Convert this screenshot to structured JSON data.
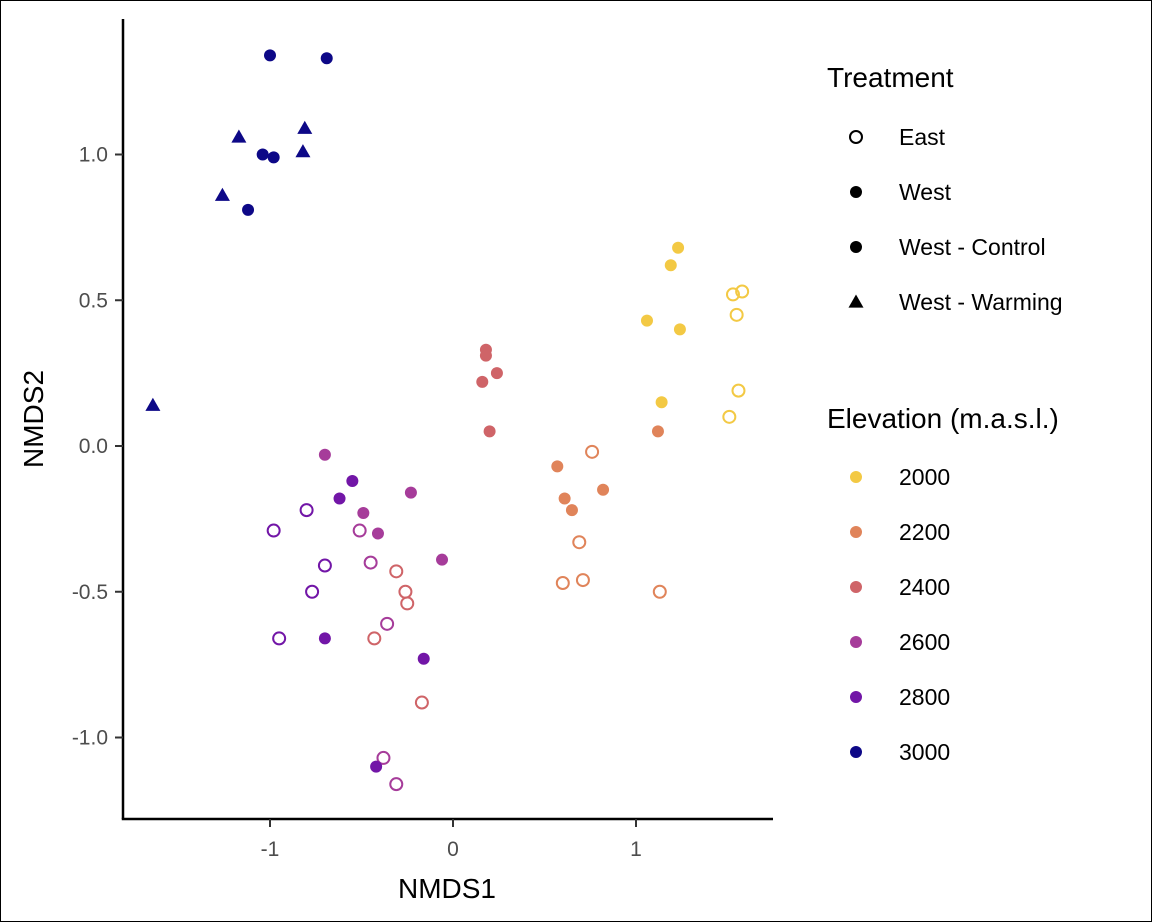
{
  "chart_data": {
    "type": "scatter",
    "xlabel": "NMDS1",
    "ylabel": "NMDS2",
    "xlim": [
      -1.8,
      1.75
    ],
    "ylim": [
      -1.3,
      1.48
    ],
    "x_ticks": [
      -1,
      0,
      1
    ],
    "x_tick_labels": [
      "-1",
      "0",
      "1"
    ],
    "y_ticks": [
      1.0,
      0.5,
      0.0,
      -0.5,
      -1.0
    ],
    "y_tick_labels": [
      "1.0",
      "0.5",
      "0.0",
      "-0.5",
      "-1.0"
    ],
    "grid": false,
    "legend_placement": "right",
    "legends": [
      {
        "title": "Treatment",
        "entries": [
          {
            "label": "East",
            "shape": "open-circle"
          },
          {
            "label": "West",
            "shape": "filled-circle"
          },
          {
            "label": "West - Control",
            "shape": "filled-circle"
          },
          {
            "label": "West - Warming",
            "shape": "triangle"
          }
        ]
      },
      {
        "title": "Elevation (m.a.s.l.)",
        "entries": [
          {
            "label": "2000",
            "color": "#F3C944"
          },
          {
            "label": "2200",
            "color": "#E0845A"
          },
          {
            "label": "2400",
            "color": "#CF6468"
          },
          {
            "label": "2600",
            "color": "#A63C9A"
          },
          {
            "label": "2800",
            "color": "#7216A7"
          },
          {
            "label": "3000",
            "color": "#0D0887"
          }
        ]
      }
    ],
    "points": [
      {
        "x": -1.0,
        "y": 1.34,
        "shape": "filled-circle",
        "elevation": "3000"
      },
      {
        "x": -0.69,
        "y": 1.33,
        "shape": "filled-circle",
        "elevation": "3000"
      },
      {
        "x": -1.17,
        "y": 1.06,
        "shape": "triangle",
        "elevation": "3000"
      },
      {
        "x": -0.81,
        "y": 1.09,
        "shape": "triangle",
        "elevation": "3000"
      },
      {
        "x": -1.04,
        "y": 1.0,
        "shape": "filled-circle",
        "elevation": "3000"
      },
      {
        "x": -0.98,
        "y": 0.99,
        "shape": "filled-circle",
        "elevation": "3000"
      },
      {
        "x": -0.82,
        "y": 1.01,
        "shape": "triangle",
        "elevation": "3000"
      },
      {
        "x": -1.26,
        "y": 0.86,
        "shape": "triangle",
        "elevation": "3000"
      },
      {
        "x": -1.12,
        "y": 0.81,
        "shape": "filled-circle",
        "elevation": "3000"
      },
      {
        "x": -1.64,
        "y": 0.14,
        "shape": "triangle",
        "elevation": "3000"
      },
      {
        "x": 1.23,
        "y": 0.68,
        "shape": "filled-circle",
        "elevation": "2000"
      },
      {
        "x": 1.19,
        "y": 0.62,
        "shape": "filled-circle",
        "elevation": "2000"
      },
      {
        "x": 1.06,
        "y": 0.43,
        "shape": "filled-circle",
        "elevation": "2000"
      },
      {
        "x": 1.24,
        "y": 0.4,
        "shape": "filled-circle",
        "elevation": "2000"
      },
      {
        "x": 1.14,
        "y": 0.15,
        "shape": "filled-circle",
        "elevation": "2000"
      },
      {
        "x": 1.53,
        "y": 0.52,
        "shape": "open-circle",
        "elevation": "2000"
      },
      {
        "x": 1.58,
        "y": 0.53,
        "shape": "open-circle",
        "elevation": "2000"
      },
      {
        "x": 1.55,
        "y": 0.45,
        "shape": "open-circle",
        "elevation": "2000"
      },
      {
        "x": 1.56,
        "y": 0.19,
        "shape": "open-circle",
        "elevation": "2000"
      },
      {
        "x": 1.51,
        "y": 0.1,
        "shape": "open-circle",
        "elevation": "2000"
      },
      {
        "x": 1.12,
        "y": 0.05,
        "shape": "filled-circle",
        "elevation": "2200"
      },
      {
        "x": 0.57,
        "y": -0.07,
        "shape": "filled-circle",
        "elevation": "2200"
      },
      {
        "x": 0.61,
        "y": -0.18,
        "shape": "filled-circle",
        "elevation": "2200"
      },
      {
        "x": 0.65,
        "y": -0.22,
        "shape": "filled-circle",
        "elevation": "2200"
      },
      {
        "x": 0.82,
        "y": -0.15,
        "shape": "filled-circle",
        "elevation": "2200"
      },
      {
        "x": 0.76,
        "y": -0.02,
        "shape": "open-circle",
        "elevation": "2200"
      },
      {
        "x": 0.69,
        "y": -0.33,
        "shape": "open-circle",
        "elevation": "2200"
      },
      {
        "x": 0.6,
        "y": -0.47,
        "shape": "open-circle",
        "elevation": "2200"
      },
      {
        "x": 0.71,
        "y": -0.46,
        "shape": "open-circle",
        "elevation": "2200"
      },
      {
        "x": 1.13,
        "y": -0.5,
        "shape": "open-circle",
        "elevation": "2200"
      },
      {
        "x": 0.18,
        "y": 0.33,
        "shape": "filled-circle",
        "elevation": "2400"
      },
      {
        "x": 0.18,
        "y": 0.31,
        "shape": "filled-circle",
        "elevation": "2400"
      },
      {
        "x": 0.24,
        "y": 0.25,
        "shape": "filled-circle",
        "elevation": "2400"
      },
      {
        "x": 0.16,
        "y": 0.22,
        "shape": "filled-circle",
        "elevation": "2400"
      },
      {
        "x": 0.2,
        "y": 0.05,
        "shape": "filled-circle",
        "elevation": "2400"
      },
      {
        "x": -0.31,
        "y": -0.43,
        "shape": "open-circle",
        "elevation": "2400"
      },
      {
        "x": -0.26,
        "y": -0.5,
        "shape": "open-circle",
        "elevation": "2400"
      },
      {
        "x": -0.25,
        "y": -0.54,
        "shape": "open-circle",
        "elevation": "2400"
      },
      {
        "x": -0.43,
        "y": -0.66,
        "shape": "open-circle",
        "elevation": "2400"
      },
      {
        "x": -0.17,
        "y": -0.88,
        "shape": "open-circle",
        "elevation": "2400"
      },
      {
        "x": -0.7,
        "y": -0.03,
        "shape": "filled-circle",
        "elevation": "2600"
      },
      {
        "x": -0.23,
        "y": -0.16,
        "shape": "filled-circle",
        "elevation": "2600"
      },
      {
        "x": -0.49,
        "y": -0.23,
        "shape": "filled-circle",
        "elevation": "2600"
      },
      {
        "x": -0.41,
        "y": -0.3,
        "shape": "filled-circle",
        "elevation": "2600"
      },
      {
        "x": -0.06,
        "y": -0.39,
        "shape": "filled-circle",
        "elevation": "2600"
      },
      {
        "x": -0.51,
        "y": -0.29,
        "shape": "open-circle",
        "elevation": "2600"
      },
      {
        "x": -0.45,
        "y": -0.4,
        "shape": "open-circle",
        "elevation": "2600"
      },
      {
        "x": -0.36,
        "y": -0.61,
        "shape": "open-circle",
        "elevation": "2600"
      },
      {
        "x": -0.38,
        "y": -1.07,
        "shape": "open-circle",
        "elevation": "2600"
      },
      {
        "x": -0.31,
        "y": -1.16,
        "shape": "open-circle",
        "elevation": "2600"
      },
      {
        "x": -0.55,
        "y": -0.12,
        "shape": "filled-circle",
        "elevation": "2800"
      },
      {
        "x": -0.62,
        "y": -0.18,
        "shape": "filled-circle",
        "elevation": "2800"
      },
      {
        "x": -0.7,
        "y": -0.66,
        "shape": "filled-circle",
        "elevation": "2800"
      },
      {
        "x": -0.16,
        "y": -0.73,
        "shape": "filled-circle",
        "elevation": "2800"
      },
      {
        "x": -0.42,
        "y": -1.1,
        "shape": "filled-circle",
        "elevation": "2800"
      },
      {
        "x": -0.8,
        "y": -0.22,
        "shape": "open-circle",
        "elevation": "2800"
      },
      {
        "x": -0.98,
        "y": -0.29,
        "shape": "open-circle",
        "elevation": "2800"
      },
      {
        "x": -0.7,
        "y": -0.41,
        "shape": "open-circle",
        "elevation": "2800"
      },
      {
        "x": -0.77,
        "y": -0.5,
        "shape": "open-circle",
        "elevation": "2800"
      },
      {
        "x": -0.95,
        "y": -0.66,
        "shape": "open-circle",
        "elevation": "2800"
      }
    ]
  }
}
